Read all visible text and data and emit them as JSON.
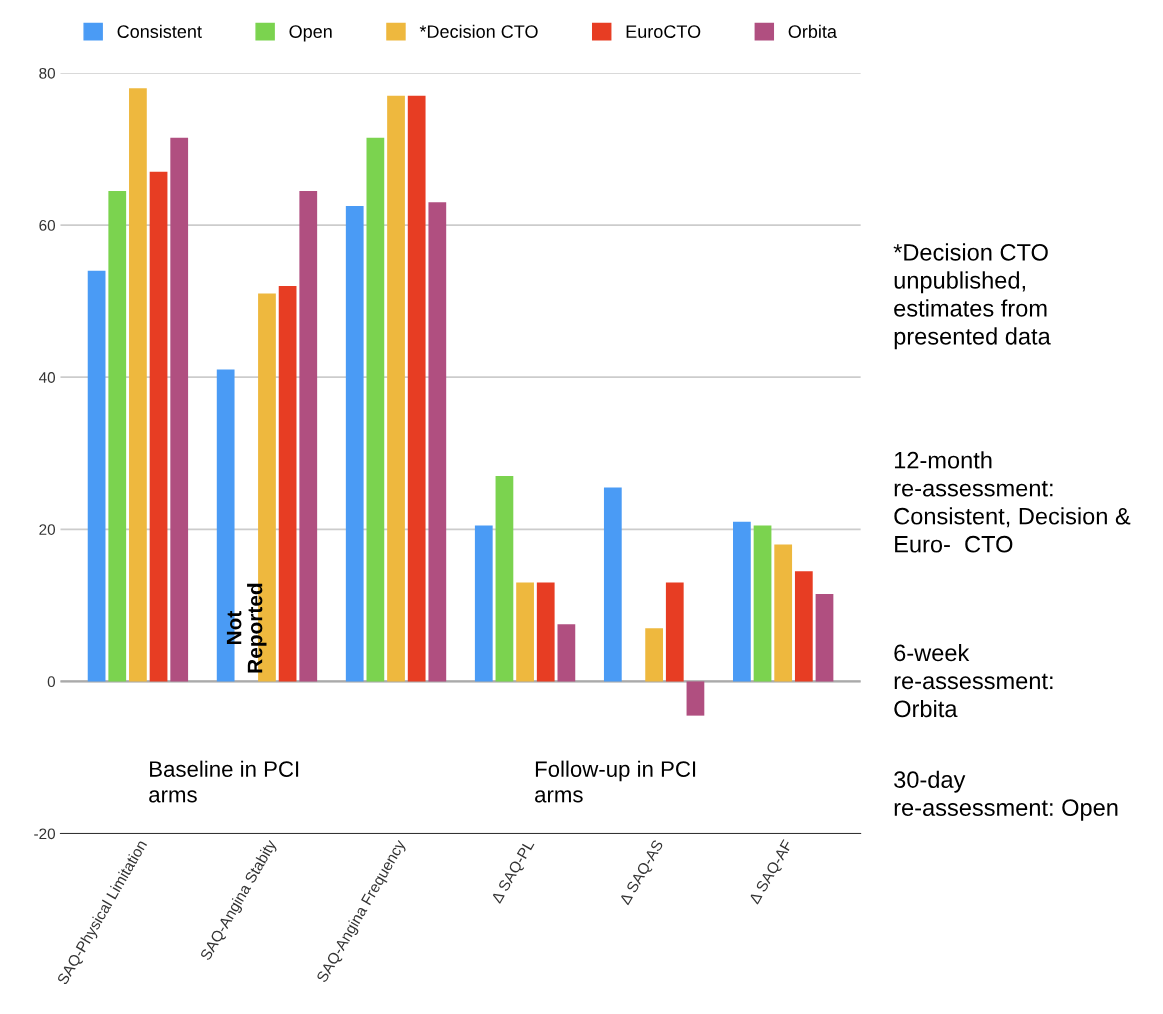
{
  "chart_data": {
    "type": "bar",
    "categories": [
      "SAQ-Physical Limitation",
      "SAQ-Angina Stabity",
      "SAQ-Angina Frequency",
      "Δ SAQ-PL",
      "Δ SAQ-AS",
      "Δ SAQ-AF"
    ],
    "series": [
      {
        "name": "Consistent",
        "color": "#4a9bf5",
        "values": [
          54,
          41,
          62.5,
          20.5,
          25.5,
          21
        ]
      },
      {
        "name": "Open",
        "color": "#7bd34f",
        "values": [
          64.5,
          null,
          71.5,
          27,
          null,
          20.5
        ]
      },
      {
        "name": "*Decision CTO",
        "color": "#eeb83e",
        "values": [
          78,
          51,
          77,
          13,
          7,
          18
        ]
      },
      {
        "name": "EuroCTO",
        "color": "#e73d23",
        "values": [
          67,
          52,
          77,
          13,
          13,
          14.5
        ]
      },
      {
        "name": "Orbita",
        "color": "#b04f80",
        "values": [
          71.5,
          64.5,
          63,
          7.5,
          -4.5,
          11.5
        ]
      }
    ],
    "ylim": [
      -20,
      80
    ],
    "yticks": [
      -20,
      0,
      20,
      40,
      60,
      80
    ],
    "grid": "y",
    "legend": "top",
    "annotations": [
      "Not Reported",
      "Baseline in PCI arms",
      "Follow-up in PCI arms",
      "*Decision CTO unpublished,  estimates from presented data",
      "12-month re-assessment: Consistent, Decision & Euro-  CTO",
      "6-week re-assessment: Orbita",
      "30-day re-assessment: Open"
    ]
  }
}
